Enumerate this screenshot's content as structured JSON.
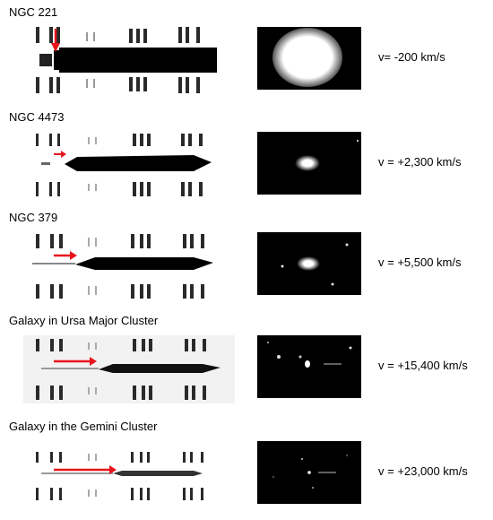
{
  "rows": [
    {
      "name": "NGC 221",
      "velocity": "v= -200 km/s",
      "arrow_icon": "red-arrow-down-icon"
    },
    {
      "name": "NGC 4473",
      "velocity": "v = +2,300 km/s",
      "arrow_icon": "red-arrow-right-icon"
    },
    {
      "name": "NGC 379",
      "velocity": "v = +5,500 km/s",
      "arrow_icon": "red-arrow-right-icon"
    },
    {
      "name": "Galaxy in Ursa Major Cluster",
      "velocity": "v = +15,400 km/s",
      "arrow_icon": "red-arrow-right-icon"
    },
    {
      "name": "Galaxy in the Gemini Cluster",
      "velocity": "v = +23,000 km/s",
      "arrow_icon": "red-arrow-right-icon"
    }
  ],
  "colors": {
    "arrow": "#e8141b",
    "photo_bg": "#000000",
    "text": "#000000"
  }
}
